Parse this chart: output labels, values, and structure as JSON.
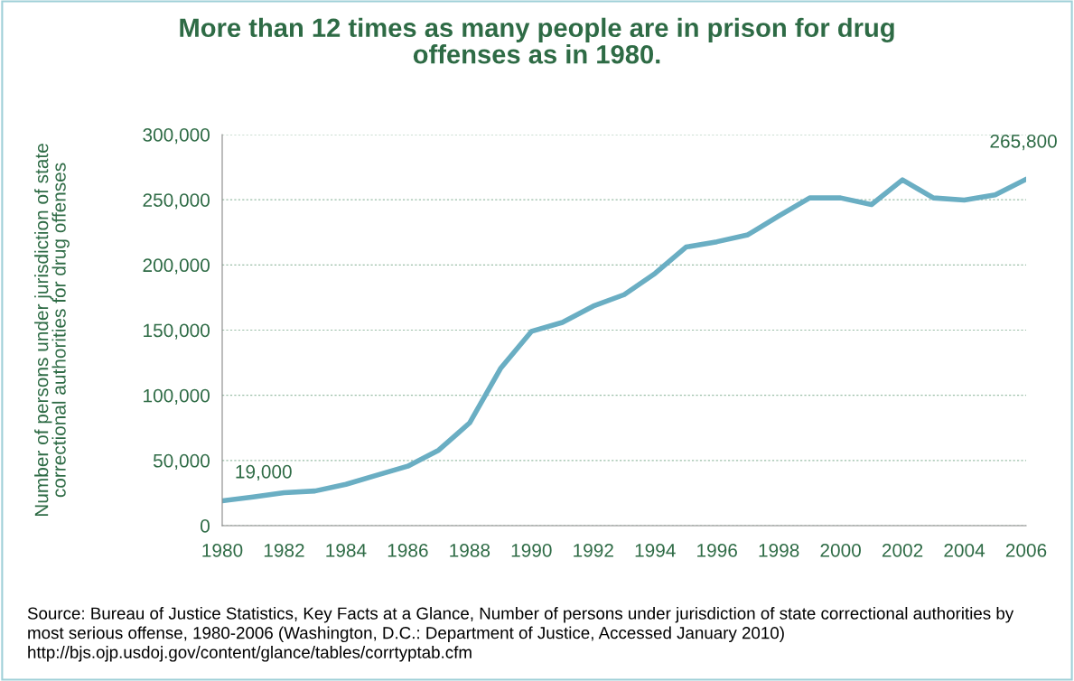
{
  "chart_data": {
    "type": "line",
    "title": "More than 12 times as many people are in prison for drug offenses as in 1980.",
    "ylabel": "Number of persons under jurisdiction of state correctional authorities for drug offenses",
    "x": [
      1980,
      1981,
      1982,
      1983,
      1984,
      1985,
      1986,
      1987,
      1988,
      1989,
      1990,
      1991,
      1992,
      1993,
      1994,
      1995,
      1996,
      1997,
      1998,
      1999,
      2000,
      2001,
      2002,
      2003,
      2004,
      2005,
      2006
    ],
    "series": [
      {
        "color": "#6aaec3",
        "values": [
          19000,
          22000,
          25300,
          26600,
          31700,
          38700,
          45600,
          57900,
          78800,
          120500,
          149000,
          155900,
          168400,
          177200,
          193500,
          213700,
          217800,
          223100,
          237500,
          251400,
          251400,
          246300,
          265300,
          251400,
          249800,
          253700,
          265800
        ]
      }
    ],
    "xlim": [
      1980,
      2006
    ],
    "xticks": [
      1980,
      1982,
      1984,
      1986,
      1988,
      1990,
      1992,
      1994,
      1996,
      1998,
      2000,
      2002,
      2004,
      2006
    ],
    "ylim": [
      0,
      300000
    ],
    "yticks": [
      {
        "value": 0,
        "label": "0"
      },
      {
        "value": 50000,
        "label": "50,000"
      },
      {
        "value": 100000,
        "label": "100,000"
      },
      {
        "value": 150000,
        "label": "150,000"
      },
      {
        "value": 200000,
        "label": "200,000"
      },
      {
        "value": 250000,
        "label": "250,000"
      },
      {
        "value": 300000,
        "label": "300,000"
      }
    ],
    "grid": "y",
    "marker": "none",
    "line_style": "solid",
    "annotations": [
      {
        "text": "19,000",
        "x": 1980,
        "y": 19000
      },
      {
        "text": "265,800",
        "x": 2006,
        "y": 265800
      },
      "Source: Bureau of Justice Statistics, Key Facts at a Glance, Number of persons under jurisdiction of state correctional authorities by most serious offense, 1980-2006 (Washington, D.C.: Department of Justice, Accessed January 2010) http://bjs.ojp.usdoj.gov/content/glance/tables/corrtyptab.cfm"
    ]
  }
}
